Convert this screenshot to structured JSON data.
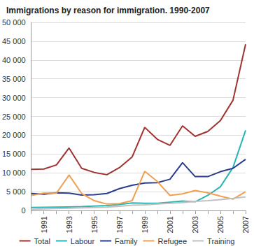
{
  "chart_data": {
    "type": "line",
    "title": "Immigrations by reason for immigration. 1990-2007",
    "categories": [
      null,
      "1991",
      null,
      "1993",
      null,
      "1995",
      null,
      "1997",
      null,
      "1999",
      null,
      "2001",
      null,
      "2003",
      null,
      "2005",
      null,
      "2007"
    ],
    "series": [
      {
        "name": "Total",
        "color": "#a0322f",
        "values": [
          10900,
          11000,
          12100,
          16600,
          11200,
          10100,
          9500,
          11400,
          14200,
          22100,
          18900,
          17300,
          22500,
          19700,
          21000,
          23900,
          29300,
          44200
        ]
      },
      {
        "name": "Labour",
        "color": "#2ab5b5",
        "values": [
          800,
          850,
          900,
          950,
          1000,
          1150,
          1300,
          1600,
          2000,
          1900,
          1900,
          2200,
          2500,
          2300,
          4000,
          6300,
          11400,
          21300
        ]
      },
      {
        "name": "Family",
        "color": "#2a3d8f",
        "values": [
          4500,
          4300,
          4700,
          4600,
          4100,
          4200,
          4500,
          5800,
          6700,
          7300,
          7400,
          8300,
          12700,
          9000,
          9000,
          10300,
          11200,
          13600
        ]
      },
      {
        "name": "Refugee",
        "color": "#f0a050",
        "values": [
          4000,
          4600,
          4600,
          9400,
          4500,
          2600,
          1700,
          1800,
          2600,
          10400,
          7700,
          4000,
          4400,
          5300,
          4700,
          3800,
          3000,
          5000
        ]
      },
      {
        "name": "Training",
        "color": "#c0c0c0",
        "values": [
          300,
          400,
          500,
          600,
          700,
          800,
          900,
          1100,
          1400,
          1500,
          1700,
          1900,
          2100,
          2400,
          2600,
          2900,
          3200,
          3600
        ]
      }
    ],
    "ylim": [
      0,
      50000
    ],
    "yticks": [
      0,
      {
        "value": 5000,
        "label": "5 000"
      },
      {
        "value": 10000,
        "label": "10 000"
      },
      {
        "value": 15000,
        "label": "15 000"
      },
      {
        "value": 20000,
        "label": "20 000"
      },
      {
        "value": 25000,
        "label": "25 000"
      },
      {
        "value": 30000,
        "label": "30 000"
      },
      {
        "value": 35000,
        "label": "35 000"
      },
      {
        "value": 40000,
        "label": "40 000"
      },
      {
        "value": 45000,
        "label": "45 000"
      },
      {
        "value": 50000,
        "label": "50 000"
      }
    ],
    "grid": true,
    "legend": "bottom"
  }
}
